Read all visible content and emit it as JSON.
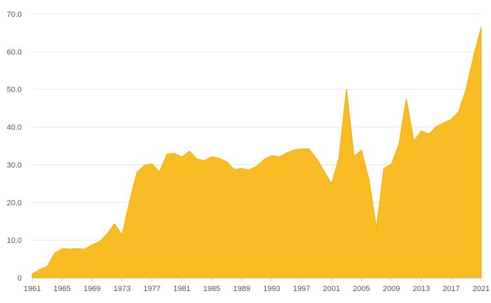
{
  "chart_data": {
    "type": "area",
    "title": "",
    "xlabel": "",
    "ylabel": "",
    "x": [
      1961,
      1962,
      1963,
      1964,
      1965,
      1966,
      1967,
      1968,
      1969,
      1970,
      1971,
      1972,
      1973,
      1974,
      1975,
      1976,
      1977,
      1978,
      1979,
      1980,
      1981,
      1982,
      1983,
      1984,
      1985,
      1986,
      1987,
      1988,
      1989,
      1990,
      1991,
      1992,
      1993,
      1994,
      1995,
      1996,
      1997,
      1998,
      1999,
      2000,
      2001,
      2002,
      2003,
      2004,
      2005,
      2006,
      2007,
      2008,
      2009,
      2010,
      2011,
      2012,
      2013,
      2014,
      2015,
      2016,
      2017,
      2018,
      2019,
      2020,
      2021
    ],
    "series": [
      {
        "values": [
          1.0,
          2.2,
          3.0,
          6.5,
          7.7,
          7.6,
          7.7,
          7.6,
          8.7,
          9.6,
          11.6,
          14.3,
          11.3,
          20.2,
          28.0,
          29.8,
          30.2,
          28.0,
          32.8,
          33.0,
          32.0,
          33.6,
          31.5,
          31.1,
          32.1,
          31.7,
          30.7,
          28.7,
          29.0,
          28.6,
          29.6,
          31.4,
          32.4,
          32.1,
          33.1,
          33.9,
          34.2,
          34.2,
          31.6,
          28.3,
          24.9,
          31.9,
          50.0,
          32.2,
          33.9,
          26.0,
          13.2,
          29.1,
          30.1,
          35.3,
          47.4,
          36.2,
          39.0,
          38.1,
          40.1,
          41.1,
          42.0,
          44.1,
          50.1,
          58.8,
          66.4
        ]
      }
    ],
    "xticks": [
      "1961",
      "1965",
      "1969",
      "1973",
      "1977",
      "1981",
      "1985",
      "1989",
      "1993",
      "1997",
      "2001",
      "2005",
      "2009",
      "2013",
      "2017",
      "2021"
    ],
    "yticks": [
      "0",
      "10.0",
      "20.0",
      "30.0",
      "40.0",
      "50.0",
      "60.0",
      "70.0"
    ],
    "ylim": [
      0,
      70
    ],
    "xlim": [
      1961,
      2021
    ],
    "grid": true,
    "legend": "none",
    "colors": {
      "fill": "#f9bc24",
      "stroke": "#f5b000"
    }
  }
}
